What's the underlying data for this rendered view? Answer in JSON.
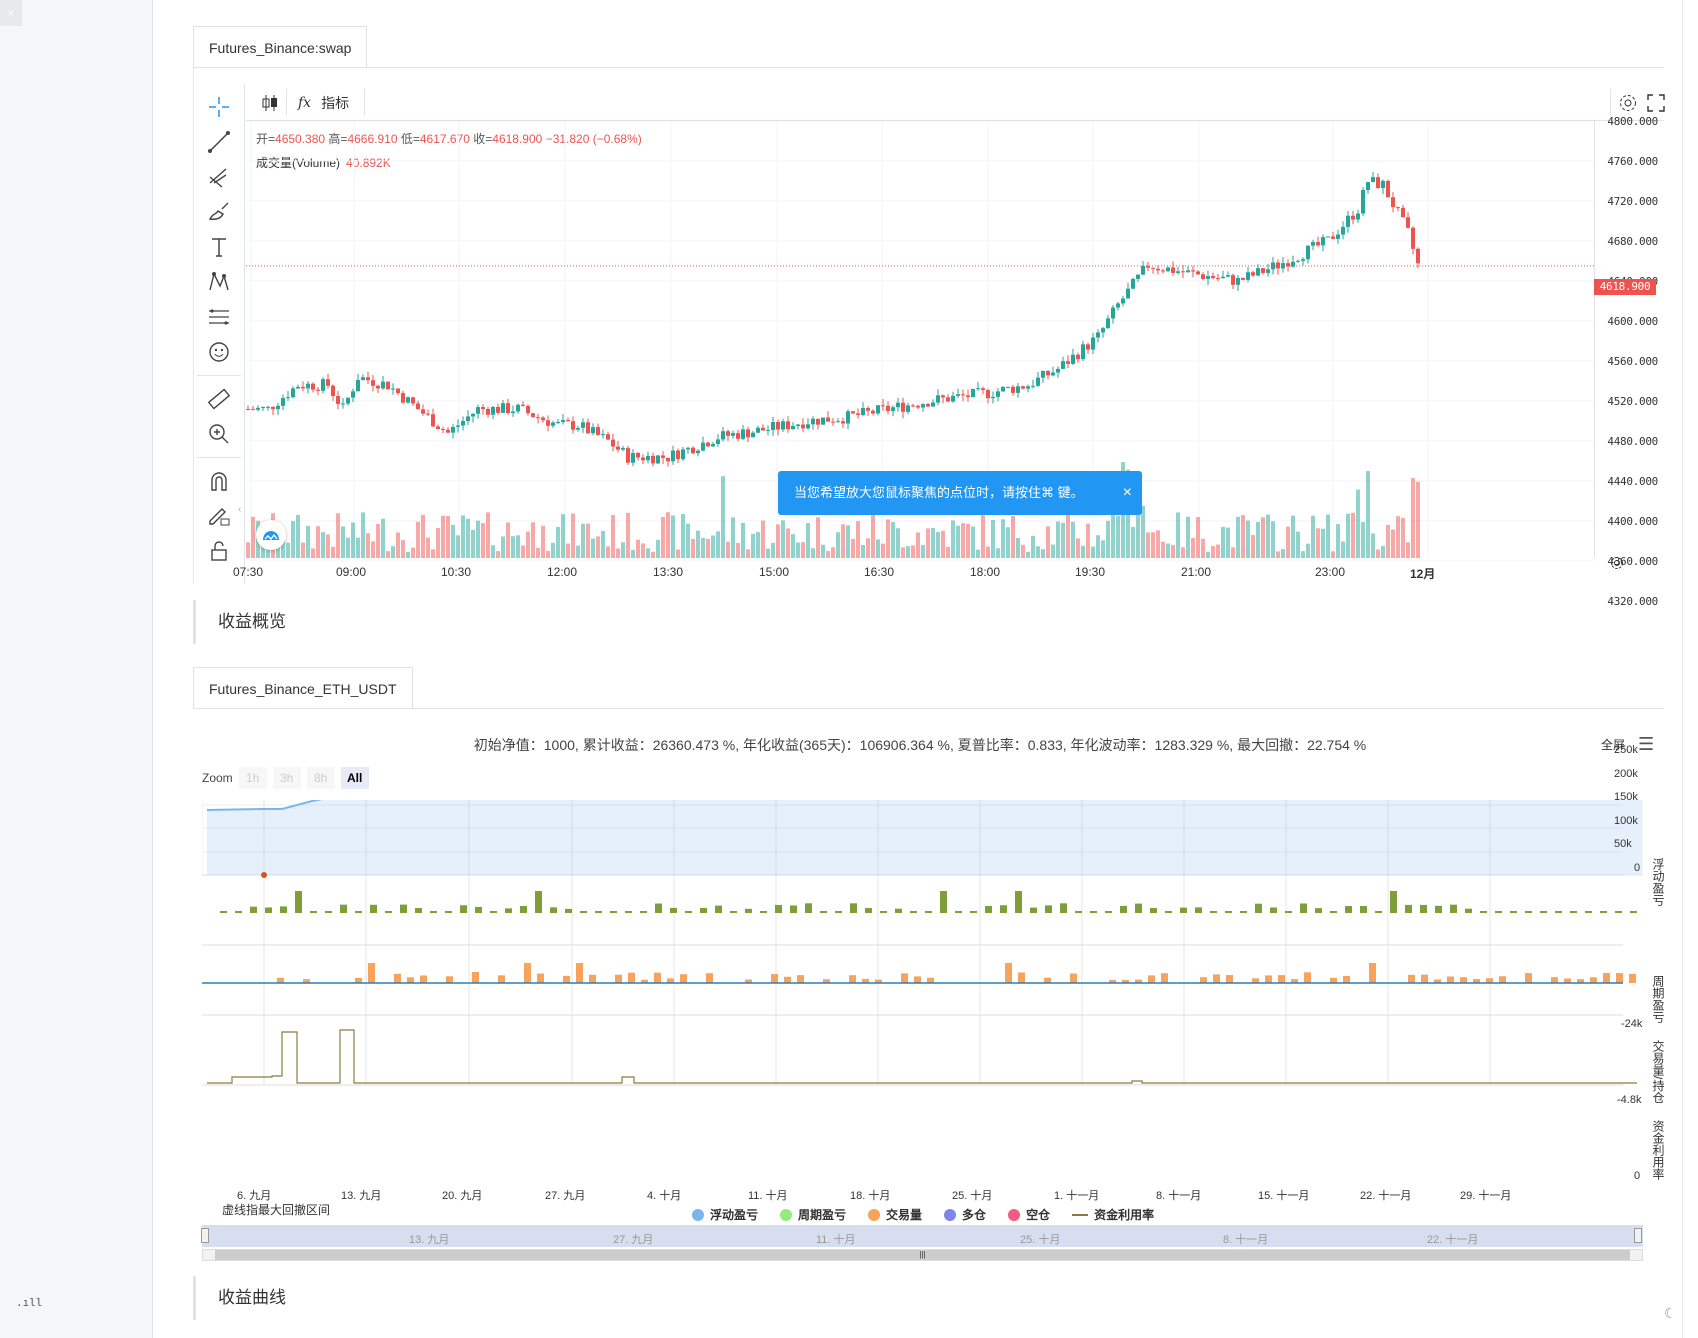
{
  "left_rail": {
    "top_btn": "×",
    "signal": ".ıll"
  },
  "tabs": {
    "swap": "Futures_Binance:swap",
    "eth": "Futures_Binance_ETH_USDT"
  },
  "toolbar": {
    "indicator_label": "指标",
    "fx_icon": "fx"
  },
  "ohlc": {
    "open_label": "开=",
    "open": "4650.380",
    "high_label": "高=",
    "high": "4666.910",
    "low_label": "低=",
    "low": "4617.670",
    "close_label": "收=",
    "close": "4618.900",
    "change": "−31.820 (−0.68%)"
  },
  "volume": {
    "label": "成交量(Volume)",
    "value": "40.892K"
  },
  "price_axis": [
    "4800.000",
    "4760.000",
    "4720.000",
    "4680.000",
    "4640.000",
    "4600.000",
    "4560.000",
    "4520.000",
    "4480.000",
    "4440.000",
    "4400.000",
    "4360.000",
    "4320.000"
  ],
  "current_price": "4618.900",
  "time_axis": [
    "07:30",
    "09:00",
    "10:30",
    "12:00",
    "13:30",
    "15:00",
    "16:30",
    "18:00",
    "19:30",
    "21:00",
    "23:00",
    "12月"
  ],
  "tooltip": {
    "text": "当您希望放大您鼠标聚焦的点位时，请按住⌘ 键。",
    "close": "×"
  },
  "sections": {
    "overview": "收益概览",
    "curve": "收益曲线"
  },
  "stats": "初始净值：1000, 累计收益：26360.473 %, 年化收益(365天)：106906.364 %, 夏普比率：0.833, 年化波动率：1283.329 %, 最大回撤：22.754 %",
  "fullscreen": "全屏",
  "zoom": {
    "label": "Zoom",
    "buttons": [
      "1h",
      "3h",
      "8h",
      "All"
    ]
  },
  "y_axis_main": [
    "250k",
    "200k",
    "150k",
    "100k",
    "50k",
    "0"
  ],
  "y_axis_labels": {
    "float": "浮动盈亏",
    "period": "周期盈亏",
    "volume": "交易量/持仓",
    "util": "资金利用率"
  },
  "y_small": {
    "period": "-24k",
    "volume": "-4.8k",
    "util": "0"
  },
  "x_dates": [
    "6. 九月",
    "13. 九月",
    "20. 九月",
    "27. 九月",
    "4. 十月",
    "11. 十月",
    "18. 十月",
    "25. 十月",
    "1. 十一月",
    "8. 十一月",
    "15. 十一月",
    "22. 十一月",
    "29. 十一月"
  ],
  "drawdown_note": "虚线指最大回撤区间",
  "legend": [
    {
      "label": "浮动盈亏",
      "color": "#7cb5ec"
    },
    {
      "label": "周期盈亏",
      "color": "#90ed7d"
    },
    {
      "label": "交易量",
      "color": "#f7a35c"
    },
    {
      "label": "多仓",
      "color": "#8085e9"
    },
    {
      "label": "空仓",
      "color": "#f15c80"
    },
    {
      "label": "资金利用率",
      "color": "#8c7b3e"
    }
  ],
  "navigator_dates": [
    "13. 九月",
    "27. 九月",
    "11. 十月",
    "25. 十月",
    "8. 十一月",
    "22. 十一月"
  ],
  "scroll_grip": "|||",
  "colors": {
    "up": "#26a69a",
    "down": "#ef5350",
    "accent": "#2196f3",
    "area": "#7cb5ec"
  }
}
